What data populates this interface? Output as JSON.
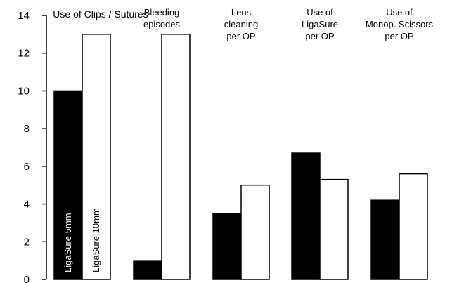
{
  "chart_data": {
    "type": "bar",
    "categories": [
      [
        "Use of Clips / Sutures"
      ],
      [
        "Bleeding",
        "episodes"
      ],
      [
        "Lens",
        "cleaning",
        "per OP"
      ],
      [
        "Use of",
        "LigaSure",
        "per OP"
      ],
      [
        "Use of",
        "Monop. Scissors",
        "per OP"
      ]
    ],
    "series": [
      {
        "name": "LigaSure 5mm",
        "color": "#000000",
        "values": [
          10,
          1,
          3.5,
          6.7,
          4.2
        ]
      },
      {
        "name": "LigaSure 10mm",
        "color": "#ffffff",
        "values": [
          13,
          13,
          5,
          5.3,
          5.6
        ]
      }
    ],
    "yticks": [
      "0",
      "2",
      "4",
      "6",
      "8",
      "10",
      "12",
      "14"
    ],
    "ylim": [
      0,
      14
    ],
    "grid": false,
    "legend": "inside-bars"
  }
}
